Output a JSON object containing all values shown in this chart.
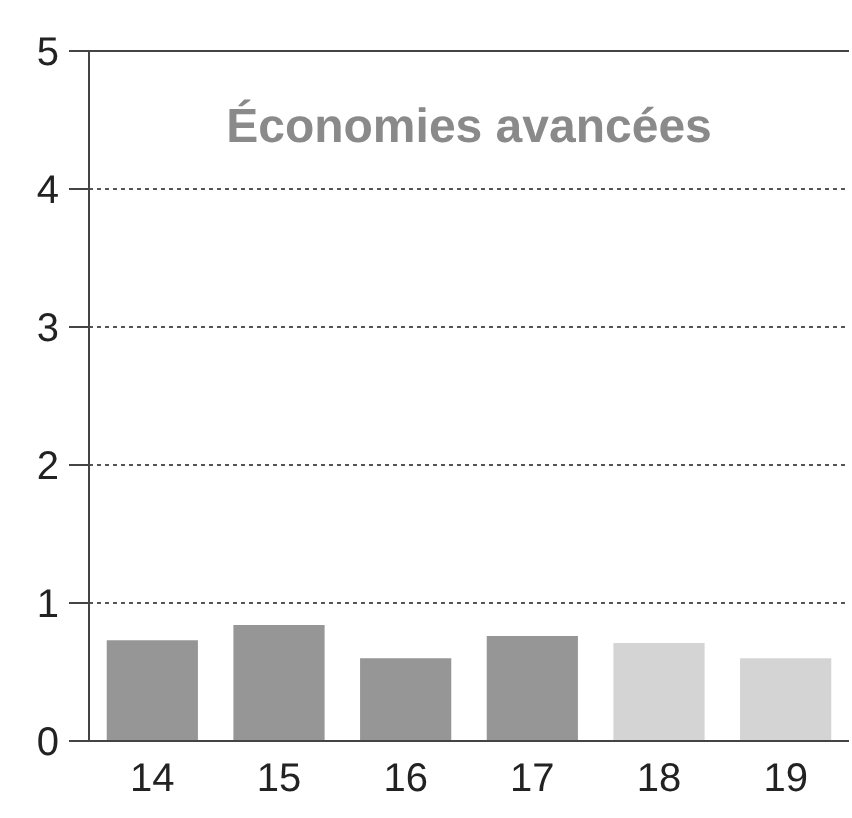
{
  "chart_data": {
    "type": "bar",
    "title": "Économies avancées",
    "categories": [
      "14",
      "15",
      "16",
      "17",
      "18",
      "19"
    ],
    "values": [
      0.73,
      0.84,
      0.6,
      0.76,
      0.71,
      0.6
    ],
    "colors": [
      "#969696",
      "#969696",
      "#969696",
      "#969696",
      "#d4d4d4",
      "#d4d4d4"
    ],
    "ylim": [
      0,
      5
    ],
    "yticks": [
      0,
      1,
      2,
      3,
      4,
      5
    ],
    "grid": "y"
  }
}
